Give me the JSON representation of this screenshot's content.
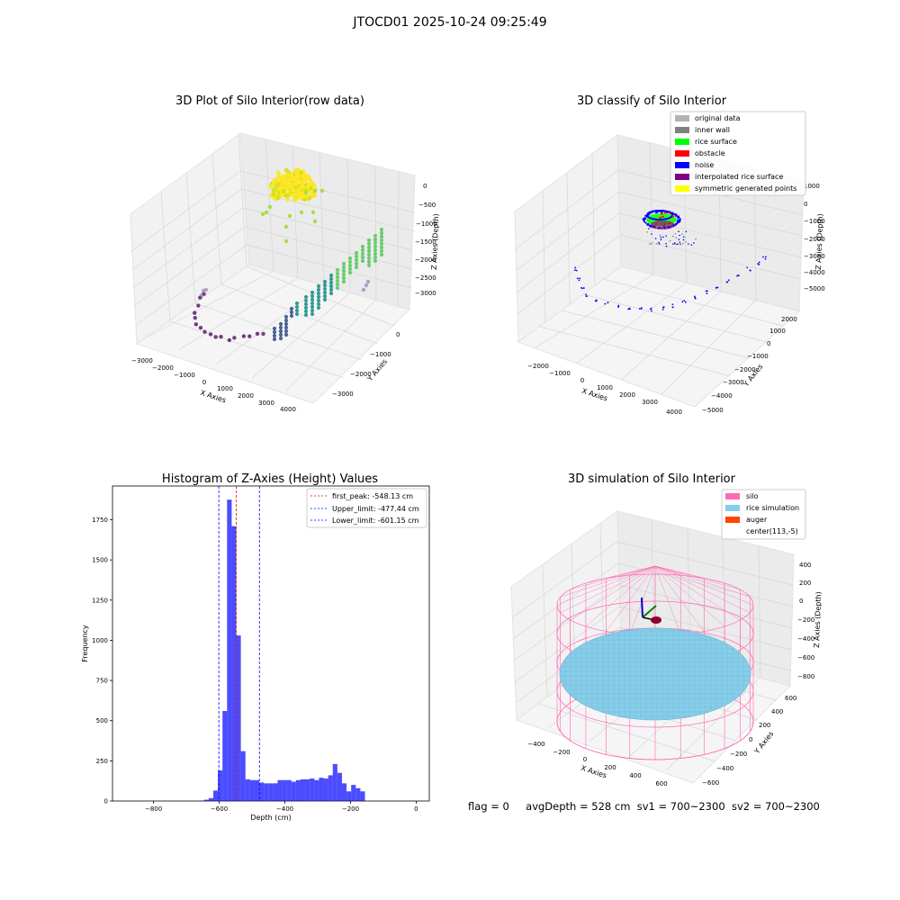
{
  "suptitle": "JTOCD01 2025-10-24 09:25:49",
  "footer": {
    "flag": "flag = 0",
    "avg": "avgDepth = 528 cm",
    "sv1": "sv1 = 700~2300",
    "sv2": "sv2 = 700~2300"
  },
  "chart_data": [
    {
      "type": "scatter",
      "title": "3D Plot of Silo Interior(row data)",
      "xlabel": "X Axies",
      "ylabel": "Y Axies",
      "zlabel": "Z Axies (Depth)",
      "x_ticks": [
        "−3000",
        "−2000",
        "−1000",
        "0",
        "1000",
        "2000",
        "3000",
        "4000"
      ],
      "y_ticks": [
        "−3000",
        "−2000",
        "−1000",
        "0"
      ],
      "z_ticks": [
        "0",
        "−500",
        "−1000",
        "−1500",
        "−2000",
        "−2500",
        "−3000"
      ],
      "colormap": [
        "#440154",
        "#3b528b",
        "#21918c",
        "#5ec962",
        "#fde725"
      ]
    },
    {
      "type": "scatter",
      "title": "3D classify of Silo Interior",
      "xlabel": "X Axies",
      "ylabel": "Y Axies",
      "zlabel": "Z Axies (Depth)",
      "x_ticks": [
        "−2000",
        "−1000",
        "0",
        "1000",
        "2000",
        "3000",
        "4000"
      ],
      "y_ticks": [
        "−5000",
        "−4000",
        "−3000",
        "−2000",
        "−1000",
        "0",
        "1000",
        "2000"
      ],
      "z_ticks": [
        "1000",
        "0",
        "−1000",
        "−2000",
        "−3000",
        "−4000",
        "−5000"
      ],
      "legend_position": "top-right",
      "legend": [
        {
          "label": "original data",
          "color": "#b3b3b3"
        },
        {
          "label": "inner wall",
          "color": "#808080"
        },
        {
          "label": "rice surface",
          "color": "#00ff00"
        },
        {
          "label": "obstacle",
          "color": "#ff0000"
        },
        {
          "label": "noise",
          "color": "#0000ff"
        },
        {
          "label": "interpolated rice surface",
          "color": "#800080"
        },
        {
          "label": "symmetric generated points",
          "color": "#ffff00"
        }
      ]
    },
    {
      "type": "bar",
      "title": "Histogram of Z-Axies (Height) Values",
      "xlabel": "Depth (cm)",
      "ylabel": "Frequency",
      "xlim": [
        -925,
        40
      ],
      "ylim": [
        0,
        1960
      ],
      "x_ticks": [
        -800,
        -600,
        -400,
        -200,
        0
      ],
      "x_tick_labels": [
        "−800",
        "−600",
        "−400",
        "−200",
        "0"
      ],
      "y_ticks": [
        0,
        250,
        500,
        750,
        1000,
        1250,
        1500,
        1750
      ],
      "bar_color": "#0000ff",
      "bins_start": -660,
      "bin_width": 14,
      "values": [
        3,
        8,
        18,
        65,
        190,
        560,
        1875,
        1710,
        1030,
        310,
        135,
        130,
        130,
        115,
        110,
        110,
        110,
        130,
        130,
        130,
        120,
        130,
        135,
        135,
        140,
        130,
        145,
        140,
        160,
        230,
        175,
        110,
        60,
        100,
        80,
        60
      ],
      "vlines": [
        {
          "label": "first_peak: -548.13 cm",
          "x": -548.13,
          "color": "#ff0000"
        },
        {
          "label": "Upper_limit: -477.44 cm",
          "x": -477.44,
          "color": "#0000ff"
        },
        {
          "label": "Lower_limit: -601.15 cm",
          "x": -601.15,
          "color": "#0000ff"
        }
      ],
      "legend_position": "top-right"
    },
    {
      "type": "scatter",
      "title": "3D simulation of Silo Interior",
      "xlabel": "X Axies",
      "ylabel": "Y Axies",
      "zlabel": "Z Axies (Depth)",
      "x_ticks": [
        "−400",
        "−200",
        "0",
        "200",
        "400",
        "600"
      ],
      "y_ticks": [
        "−600",
        "−400",
        "−200",
        "0",
        "200",
        "400",
        "600"
      ],
      "z_ticks": [
        "400",
        "200",
        "0",
        "−200",
        "−400",
        "−600",
        "−800"
      ],
      "legend_position": "top-right",
      "legend": [
        {
          "label": "silo",
          "color": "#ff69b4"
        },
        {
          "label": "rice simulation",
          "color": "#87ceeb"
        },
        {
          "label": "auger",
          "color": "#ff4500"
        },
        {
          "label": "center(113,-5)",
          "color": ""
        }
      ]
    }
  ]
}
